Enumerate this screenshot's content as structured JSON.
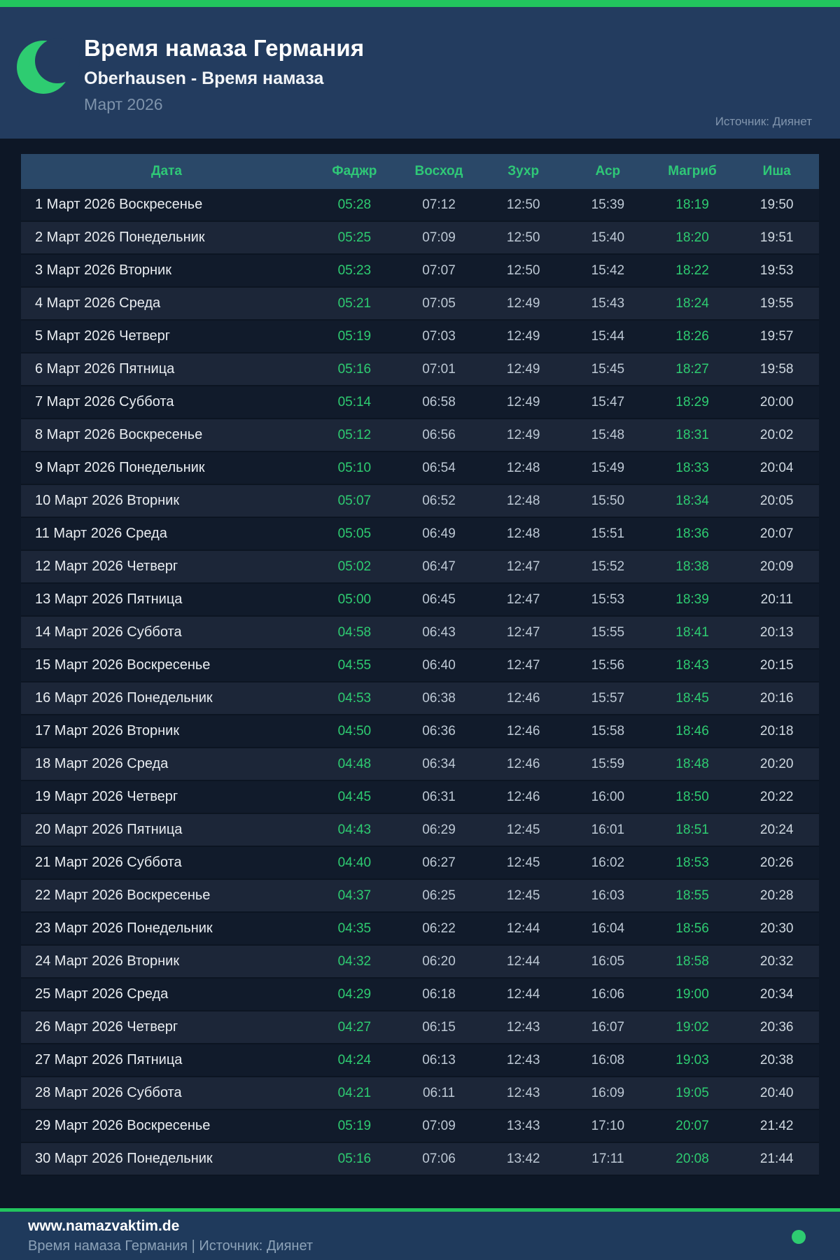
{
  "header": {
    "title": "Время намаза Германия",
    "subtitle": "Oberhausen - Время намаза",
    "period": "Март 2026",
    "source": "Источник: Диянет"
  },
  "table": {
    "columns": [
      "Дата",
      "Фаджр",
      "Восход",
      "Зухр",
      "Аср",
      "Магриб",
      "Иша"
    ],
    "rows": [
      {
        "date": "1 Март 2026 Воскресенье",
        "times": [
          "05:28",
          "07:12",
          "12:50",
          "15:39",
          "18:19",
          "19:50"
        ]
      },
      {
        "date": "2 Март 2026 Понедельник",
        "times": [
          "05:25",
          "07:09",
          "12:50",
          "15:40",
          "18:20",
          "19:51"
        ]
      },
      {
        "date": "3 Март 2026 Вторник",
        "times": [
          "05:23",
          "07:07",
          "12:50",
          "15:42",
          "18:22",
          "19:53"
        ]
      },
      {
        "date": "4 Март 2026 Среда",
        "times": [
          "05:21",
          "07:05",
          "12:49",
          "15:43",
          "18:24",
          "19:55"
        ]
      },
      {
        "date": "5 Март 2026 Четверг",
        "times": [
          "05:19",
          "07:03",
          "12:49",
          "15:44",
          "18:26",
          "19:57"
        ]
      },
      {
        "date": "6 Март 2026 Пятница",
        "times": [
          "05:16",
          "07:01",
          "12:49",
          "15:45",
          "18:27",
          "19:58"
        ]
      },
      {
        "date": "7 Март 2026 Суббота",
        "times": [
          "05:14",
          "06:58",
          "12:49",
          "15:47",
          "18:29",
          "20:00"
        ]
      },
      {
        "date": "8 Март 2026 Воскресенье",
        "times": [
          "05:12",
          "06:56",
          "12:49",
          "15:48",
          "18:31",
          "20:02"
        ]
      },
      {
        "date": "9 Март 2026 Понедельник",
        "times": [
          "05:10",
          "06:54",
          "12:48",
          "15:49",
          "18:33",
          "20:04"
        ]
      },
      {
        "date": "10 Март 2026 Вторник",
        "times": [
          "05:07",
          "06:52",
          "12:48",
          "15:50",
          "18:34",
          "20:05"
        ]
      },
      {
        "date": "11 Март 2026 Среда",
        "times": [
          "05:05",
          "06:49",
          "12:48",
          "15:51",
          "18:36",
          "20:07"
        ]
      },
      {
        "date": "12 Март 2026 Четверг",
        "times": [
          "05:02",
          "06:47",
          "12:47",
          "15:52",
          "18:38",
          "20:09"
        ]
      },
      {
        "date": "13 Март 2026 Пятница",
        "times": [
          "05:00",
          "06:45",
          "12:47",
          "15:53",
          "18:39",
          "20:11"
        ]
      },
      {
        "date": "14 Март 2026 Суббота",
        "times": [
          "04:58",
          "06:43",
          "12:47",
          "15:55",
          "18:41",
          "20:13"
        ]
      },
      {
        "date": "15 Март 2026 Воскресенье",
        "times": [
          "04:55",
          "06:40",
          "12:47",
          "15:56",
          "18:43",
          "20:15"
        ]
      },
      {
        "date": "16 Март 2026 Понедельник",
        "times": [
          "04:53",
          "06:38",
          "12:46",
          "15:57",
          "18:45",
          "20:16"
        ]
      },
      {
        "date": "17 Март 2026 Вторник",
        "times": [
          "04:50",
          "06:36",
          "12:46",
          "15:58",
          "18:46",
          "20:18"
        ]
      },
      {
        "date": "18 Март 2026 Среда",
        "times": [
          "04:48",
          "06:34",
          "12:46",
          "15:59",
          "18:48",
          "20:20"
        ]
      },
      {
        "date": "19 Март 2026 Четверг",
        "times": [
          "04:45",
          "06:31",
          "12:46",
          "16:00",
          "18:50",
          "20:22"
        ]
      },
      {
        "date": "20 Март 2026 Пятница",
        "times": [
          "04:43",
          "06:29",
          "12:45",
          "16:01",
          "18:51",
          "20:24"
        ]
      },
      {
        "date": "21 Март 2026 Суббота",
        "times": [
          "04:40",
          "06:27",
          "12:45",
          "16:02",
          "18:53",
          "20:26"
        ]
      },
      {
        "date": "22 Март 2026 Воскресенье",
        "times": [
          "04:37",
          "06:25",
          "12:45",
          "16:03",
          "18:55",
          "20:28"
        ]
      },
      {
        "date": "23 Март 2026 Понедельник",
        "times": [
          "04:35",
          "06:22",
          "12:44",
          "16:04",
          "18:56",
          "20:30"
        ]
      },
      {
        "date": "24 Март 2026 Вторник",
        "times": [
          "04:32",
          "06:20",
          "12:44",
          "16:05",
          "18:58",
          "20:32"
        ]
      },
      {
        "date": "25 Март 2026 Среда",
        "times": [
          "04:29",
          "06:18",
          "12:44",
          "16:06",
          "19:00",
          "20:34"
        ]
      },
      {
        "date": "26 Март 2026 Четверг",
        "times": [
          "04:27",
          "06:15",
          "12:43",
          "16:07",
          "19:02",
          "20:36"
        ]
      },
      {
        "date": "27 Март 2026 Пятница",
        "times": [
          "04:24",
          "06:13",
          "12:43",
          "16:08",
          "19:03",
          "20:38"
        ]
      },
      {
        "date": "28 Март 2026 Суббота",
        "times": [
          "04:21",
          "06:11",
          "12:43",
          "16:09",
          "19:05",
          "20:40"
        ]
      },
      {
        "date": "29 Март 2026 Воскресенье",
        "times": [
          "05:19",
          "07:09",
          "13:43",
          "17:10",
          "20:07",
          "21:42"
        ]
      },
      {
        "date": "30 Март 2026 Понедельник",
        "times": [
          "05:16",
          "07:06",
          "13:42",
          "17:11",
          "20:08",
          "21:44"
        ]
      }
    ]
  },
  "footer": {
    "site": "www.namazvaktim.de",
    "tagline": "Время намаза Германия | Источник: Диянет"
  },
  "colors": {
    "accent_green": "#2ecc71",
    "bar_green": "#22c55e",
    "header_navy": "#233c5f",
    "table_header_navy": "#2a4868",
    "row_dark": "#111b2b",
    "row_light": "#1c2638",
    "page_bg": "#0d1726",
    "muted_text": "#8195ad"
  }
}
